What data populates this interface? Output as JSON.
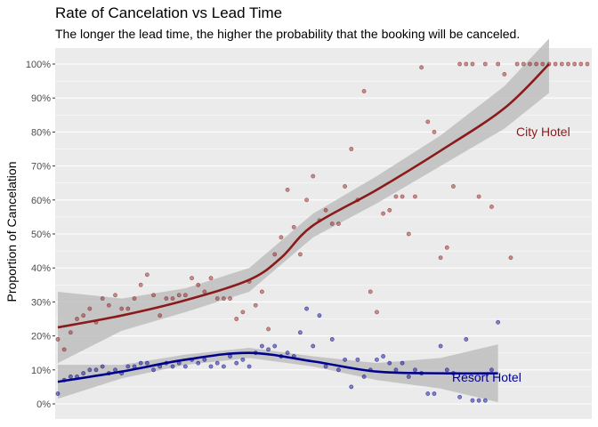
{
  "chart_data": {
    "type": "scatter",
    "title": "Rate of Cancelation vs Lead Time",
    "subtitle": "The longer the lead time, the higher the probability that the booking will be canceled.",
    "ylabel": "Proportion of Cancelation",
    "xlabel": "",
    "ylim": [
      -0.05,
      1.05
    ],
    "yticks": [
      0,
      0.1,
      0.2,
      0.3,
      0.4,
      0.5,
      0.6,
      0.7,
      0.8,
      0.9,
      1.0
    ],
    "ytick_labels": [
      "0%",
      "10%",
      "20%",
      "30%",
      "40%",
      "50%",
      "60%",
      "70%",
      "80%",
      "90%",
      "100%"
    ],
    "x_axis_labels_shown": false,
    "grid": true,
    "colors": {
      "city": "#8b1a1a",
      "resort": "#00008b",
      "band": "#bebebe",
      "panel": "#ebebeb"
    },
    "series": [
      {
        "name": "City Hotel",
        "color": "#8b1a1a",
        "points": [
          [
            0,
            0.19
          ],
          [
            1,
            0.16
          ],
          [
            2,
            0.21
          ],
          [
            3,
            0.25
          ],
          [
            4,
            0.26
          ],
          [
            5,
            0.28
          ],
          [
            6,
            0.24
          ],
          [
            7,
            0.31
          ],
          [
            8,
            0.29
          ],
          [
            9,
            0.32
          ],
          [
            10,
            0.28
          ],
          [
            11,
            0.28
          ],
          [
            12,
            0.31
          ],
          [
            13,
            0.35
          ],
          [
            14,
            0.38
          ],
          [
            15,
            0.32
          ],
          [
            16,
            0.26
          ],
          [
            17,
            0.31
          ],
          [
            18,
            0.31
          ],
          [
            19,
            0.32
          ],
          [
            20,
            0.32
          ],
          [
            21,
            0.37
          ],
          [
            22,
            0.35
          ],
          [
            23,
            0.33
          ],
          [
            24,
            0.37
          ],
          [
            25,
            0.31
          ],
          [
            26,
            0.31
          ],
          [
            27,
            0.31
          ],
          [
            28,
            0.25
          ],
          [
            29,
            0.27
          ],
          [
            30,
            0.36
          ],
          [
            31,
            0.29
          ],
          [
            32,
            0.33
          ],
          [
            33,
            0.22
          ],
          [
            34,
            0.44
          ],
          [
            35,
            0.49
          ],
          [
            36,
            0.63
          ],
          [
            37,
            0.52
          ],
          [
            38,
            0.44
          ],
          [
            39,
            0.6
          ],
          [
            40,
            0.67
          ],
          [
            41,
            0.54
          ],
          [
            42,
            0.57
          ],
          [
            43,
            0.53
          ],
          [
            44,
            0.53
          ],
          [
            45,
            0.64
          ],
          [
            46,
            0.75
          ],
          [
            47,
            0.6
          ],
          [
            48,
            0.92
          ],
          [
            49,
            0.33
          ],
          [
            50,
            0.27
          ],
          [
            51,
            0.56
          ],
          [
            52,
            0.57
          ],
          [
            53,
            0.61
          ],
          [
            54,
            0.61
          ],
          [
            55,
            0.5
          ],
          [
            56,
            0.61
          ],
          [
            57,
            0.99
          ],
          [
            58,
            0.83
          ],
          [
            59,
            0.8
          ],
          [
            60,
            0.43
          ],
          [
            61,
            0.46
          ],
          [
            62,
            0.64
          ],
          [
            63,
            1.0
          ],
          [
            64,
            1.0
          ],
          [
            65,
            1.0
          ],
          [
            66,
            0.61
          ],
          [
            67,
            1.0
          ],
          [
            68,
            0.58
          ],
          [
            69,
            1.0
          ],
          [
            70,
            0.97
          ],
          [
            71,
            0.43
          ],
          [
            72,
            1.0
          ],
          [
            73,
            1.0
          ],
          [
            74,
            1.0
          ],
          [
            75,
            1.0
          ],
          [
            76,
            1.0
          ],
          [
            77,
            1.0
          ],
          [
            78,
            1.0
          ],
          [
            79,
            1.0
          ],
          [
            80,
            1.0
          ],
          [
            81,
            1.0
          ],
          [
            82,
            1.0
          ],
          [
            83,
            1.0
          ]
        ],
        "trend": [
          [
            0,
            0.225
          ],
          [
            10,
            0.26
          ],
          [
            20,
            0.305
          ],
          [
            30,
            0.365
          ],
          [
            35,
            0.43
          ],
          [
            40,
            0.525
          ],
          [
            50,
            0.63
          ],
          [
            60,
            0.745
          ],
          [
            70,
            0.87
          ],
          [
            77,
            1.0
          ]
        ],
        "band": [
          [
            0,
            0.33,
            0.12
          ],
          [
            10,
            0.31,
            0.215
          ],
          [
            20,
            0.34,
            0.27
          ],
          [
            30,
            0.4,
            0.33
          ],
          [
            40,
            0.56,
            0.49
          ],
          [
            50,
            0.67,
            0.59
          ],
          [
            60,
            0.79,
            0.7
          ],
          [
            70,
            0.935,
            0.81
          ],
          [
            77,
            1.075,
            0.915
          ]
        ]
      },
      {
        "name": "Resort Hotel",
        "color": "#00008b",
        "points": [
          [
            0,
            0.03
          ],
          [
            1,
            0.07
          ],
          [
            2,
            0.08
          ],
          [
            3,
            0.08
          ],
          [
            4,
            0.09
          ],
          [
            5,
            0.1
          ],
          [
            6,
            0.1
          ],
          [
            7,
            0.11
          ],
          [
            8,
            0.09
          ],
          [
            9,
            0.1
          ],
          [
            10,
            0.09
          ],
          [
            11,
            0.11
          ],
          [
            12,
            0.11
          ],
          [
            13,
            0.12
          ],
          [
            14,
            0.12
          ],
          [
            15,
            0.1
          ],
          [
            16,
            0.11
          ],
          [
            17,
            0.12
          ],
          [
            18,
            0.11
          ],
          [
            19,
            0.12
          ],
          [
            20,
            0.11
          ],
          [
            21,
            0.13
          ],
          [
            22,
            0.12
          ],
          [
            23,
            0.13
          ],
          [
            24,
            0.11
          ],
          [
            25,
            0.12
          ],
          [
            26,
            0.11
          ],
          [
            27,
            0.14
          ],
          [
            28,
            0.12
          ],
          [
            29,
            0.13
          ],
          [
            30,
            0.11
          ],
          [
            31,
            0.15
          ],
          [
            32,
            0.17
          ],
          [
            33,
            0.16
          ],
          [
            34,
            0.17
          ],
          [
            35,
            0.14
          ],
          [
            36,
            0.15
          ],
          [
            37,
            0.14
          ],
          [
            38,
            0.21
          ],
          [
            39,
            0.28
          ],
          [
            40,
            0.17
          ],
          [
            41,
            0.26
          ],
          [
            42,
            0.11
          ],
          [
            43,
            0.19
          ],
          [
            44,
            0.1
          ],
          [
            45,
            0.13
          ],
          [
            46,
            0.05
          ],
          [
            47,
            0.13
          ],
          [
            48,
            0.08
          ],
          [
            49,
            0.1
          ],
          [
            50,
            0.13
          ],
          [
            51,
            0.14
          ],
          [
            52,
            0.12
          ],
          [
            53,
            0.1
          ],
          [
            54,
            0.12
          ],
          [
            55,
            0.08
          ],
          [
            56,
            0.1
          ],
          [
            57,
            0.09
          ],
          [
            58,
            0.03
          ],
          [
            59,
            0.03
          ],
          [
            60,
            0.17
          ],
          [
            61,
            0.1
          ],
          [
            62,
            0.09
          ],
          [
            63,
            0.02
          ],
          [
            64,
            0.19
          ],
          [
            65,
            0.01
          ],
          [
            66,
            0.01
          ],
          [
            67,
            0.01
          ],
          [
            68,
            0.1
          ],
          [
            69,
            0.24
          ]
        ],
        "trend": [
          [
            0,
            0.065
          ],
          [
            10,
            0.095
          ],
          [
            20,
            0.13
          ],
          [
            30,
            0.15
          ],
          [
            40,
            0.125
          ],
          [
            50,
            0.095
          ],
          [
            60,
            0.09
          ],
          [
            69,
            0.09
          ]
        ],
        "band": [
          [
            0,
            0.115,
            0.015
          ],
          [
            10,
            0.115,
            0.075
          ],
          [
            20,
            0.145,
            0.115
          ],
          [
            30,
            0.165,
            0.135
          ],
          [
            40,
            0.14,
            0.11
          ],
          [
            50,
            0.12,
            0.07
          ],
          [
            60,
            0.135,
            0.045
          ],
          [
            69,
            0.175,
            0.005
          ]
        ]
      }
    ]
  }
}
